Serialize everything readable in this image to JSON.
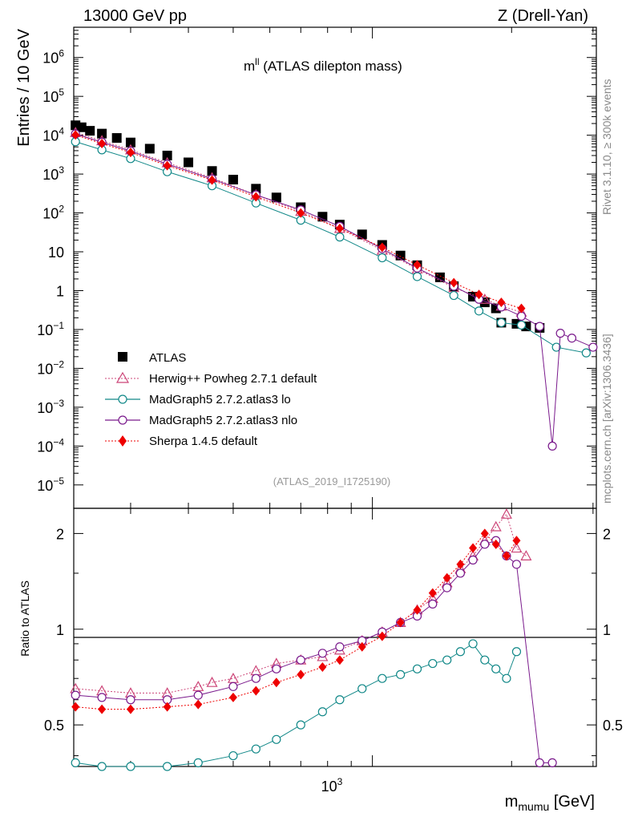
{
  "header": {
    "energy": "13000 GeV pp",
    "process": "Z (Drell-Yan)",
    "observable_main": "m",
    "observable_sup": "ll",
    "observable_desc": " (ATLAS dilepton mass)",
    "analysis": "(ATLAS_2019_I1725190)",
    "rivet": "Rivet 3.1.10, ≥ 300k events",
    "mcplots": "mcplots.cern.ch [arXiv:1306.3436]"
  },
  "axes": {
    "ylabel_main": "Entries / 10 GeV",
    "ylabel_ratio": "Ratio to ATLAS",
    "xlabel_main": "m",
    "xlabel_sub": "mumu",
    "xlabel_unit": " [GeV]",
    "x_tick": "10",
    "x_tick_exp": "3",
    "ratio_ticks": [
      "0.5",
      "1",
      "2"
    ],
    "main_ticks": [
      {
        "base": "10",
        "exp": "6"
      },
      {
        "base": "10",
        "exp": "5"
      },
      {
        "base": "10",
        "exp": "4"
      },
      {
        "base": "10",
        "exp": "3"
      },
      {
        "base": "10",
        "exp": "2"
      },
      {
        "base": "10",
        "exp": ""
      },
      {
        "base": "1",
        "exp": ""
      },
      {
        "base": "10",
        "exp": "−1"
      },
      {
        "base": "10",
        "exp": "−2"
      },
      {
        "base": "10",
        "exp": "−3"
      },
      {
        "base": "10",
        "exp": "−4"
      },
      {
        "base": "10",
        "exp": "−5"
      }
    ]
  },
  "legend": {
    "atlas": "ATLAS",
    "herwig": "Herwig++ Powheg 2.7.1 default",
    "mg_lo": "MadGraph5 2.7.2.atlas3 lo",
    "mg_nlo": "MadGraph5 2.7.2.atlas3 nlo",
    "sherpa": "Sherpa 1.4.5 default"
  },
  "colors": {
    "atlas": "#000000",
    "herwig": "#cc4477",
    "mg_lo": "#118888",
    "mg_nlo": "#7a1a8c",
    "sherpa": "#ee0000"
  },
  "chart_data": {
    "type": "scatter",
    "x_scale": "log",
    "x_range": [
      226,
      3050
    ],
    "y_range_main": [
      2.5e-06,
      6000000.0
    ],
    "y_scale_main": "log",
    "y_range_ratio": [
      0.37,
      2.4
    ],
    "y_scale_ratio": "log",
    "series": [
      {
        "name": "ATLAS",
        "points": [
          [
            228,
            18000
          ],
          [
            235,
            16000
          ],
          [
            245,
            13000
          ],
          [
            260,
            11000
          ],
          [
            280,
            8500
          ],
          [
            300,
            6500
          ],
          [
            330,
            4500
          ],
          [
            360,
            3000
          ],
          [
            400,
            2000
          ],
          [
            450,
            1200
          ],
          [
            500,
            720
          ],
          [
            560,
            420
          ],
          [
            620,
            250
          ],
          [
            700,
            140
          ],
          [
            780,
            80
          ],
          [
            850,
            50
          ],
          [
            950,
            28
          ],
          [
            1050,
            15
          ],
          [
            1150,
            8
          ],
          [
            1250,
            4.5
          ],
          [
            1400,
            2.2
          ],
          [
            1500,
            1.3
          ],
          [
            1650,
            0.7
          ],
          [
            1750,
            0.5
          ],
          [
            1850,
            0.35
          ],
          [
            1900,
            0.15
          ],
          [
            2050,
            0.14
          ],
          [
            2150,
            0.12
          ],
          [
            2300,
            0.11
          ]
        ]
      },
      {
        "name": "Herwig++ Powheg 2.7.1 default",
        "points": [
          [
            228,
            11700
          ],
          [
            260,
            7200
          ],
          [
            300,
            4200
          ],
          [
            360,
            1950
          ],
          [
            450,
            800
          ],
          [
            560,
            290
          ],
          [
            700,
            110
          ],
          [
            850,
            40
          ],
          [
            1050,
            11
          ],
          [
            1250,
            3.6
          ],
          [
            1500,
            1.2
          ],
          [
            1750,
            0.6
          ],
          [
            1900,
            0.4
          ],
          [
            2100,
            0.28
          ]
        ]
      },
      {
        "name": "MadGraph5 2.7.2.atlas3 lo",
        "points": [
          [
            228,
            6800
          ],
          [
            260,
            4200
          ],
          [
            300,
            2500
          ],
          [
            360,
            1150
          ],
          [
            450,
            500
          ],
          [
            560,
            180
          ],
          [
            700,
            65
          ],
          [
            850,
            24
          ],
          [
            1050,
            7
          ],
          [
            1250,
            2.3
          ],
          [
            1500,
            0.75
          ],
          [
            1700,
            0.3
          ],
          [
            1900,
            0.15
          ],
          [
            2100,
            0.13
          ],
          [
            2500,
            0.035
          ],
          [
            2900,
            0.025
          ]
        ]
      },
      {
        "name": "MadGraph5 2.7.2.atlas3 nlo",
        "points": [
          [
            228,
            10800
          ],
          [
            260,
            6600
          ],
          [
            300,
            3900
          ],
          [
            360,
            1800
          ],
          [
            450,
            750
          ],
          [
            560,
            290
          ],
          [
            700,
            120
          ],
          [
            850,
            45
          ],
          [
            1050,
            12
          ],
          [
            1250,
            3.8
          ],
          [
            1500,
            1.3
          ],
          [
            1700,
            0.6
          ],
          [
            1900,
            0.38
          ],
          [
            2100,
            0.22
          ],
          [
            2300,
            0.12
          ],
          [
            2450,
            0.0001
          ],
          [
            2550,
            0.08
          ],
          [
            2700,
            0.06
          ],
          [
            3000,
            0.035
          ]
        ]
      },
      {
        "name": "Sherpa 1.4.5 default",
        "points": [
          [
            228,
            10200
          ],
          [
            260,
            6100
          ],
          [
            300,
            3600
          ],
          [
            360,
            1650
          ],
          [
            450,
            700
          ],
          [
            560,
            260
          ],
          [
            700,
            100
          ],
          [
            850,
            40
          ],
          [
            1050,
            13
          ],
          [
            1250,
            4.6
          ],
          [
            1500,
            1.6
          ],
          [
            1700,
            0.8
          ],
          [
            1900,
            0.5
          ],
          [
            2100,
            0.35
          ]
        ]
      }
    ],
    "ratio_series": [
      {
        "name": "Herwig++ Powheg 2.7.1 default",
        "points": [
          [
            228,
            0.65
          ],
          [
            260,
            0.64
          ],
          [
            300,
            0.63
          ],
          [
            360,
            0.63
          ],
          [
            420,
            0.66
          ],
          [
            450,
            0.68
          ],
          [
            500,
            0.7
          ],
          [
            560,
            0.74
          ],
          [
            620,
            0.78
          ],
          [
            700,
            0.8
          ],
          [
            780,
            0.82
          ],
          [
            850,
            0.86
          ],
          [
            950,
            0.92
          ],
          [
            1050,
            0.98
          ],
          [
            1150,
            1.05
          ],
          [
            1250,
            1.15
          ],
          [
            1350,
            1.25
          ],
          [
            1450,
            1.4
          ],
          [
            1550,
            1.55
          ],
          [
            1650,
            1.7
          ],
          [
            1750,
            1.9
          ],
          [
            1850,
            2.1
          ],
          [
            1950,
            2.3
          ],
          [
            2050,
            1.8
          ],
          [
            2150,
            1.7
          ]
        ]
      },
      {
        "name": "MadGraph5 2.7.2.atlas3 lo",
        "points": [
          [
            228,
            0.38
          ],
          [
            260,
            0.37
          ],
          [
            300,
            0.37
          ],
          [
            360,
            0.37
          ],
          [
            420,
            0.38
          ],
          [
            500,
            0.4
          ],
          [
            560,
            0.42
          ],
          [
            620,
            0.45
          ],
          [
            700,
            0.5
          ],
          [
            780,
            0.55
          ],
          [
            850,
            0.6
          ],
          [
            950,
            0.65
          ],
          [
            1050,
            0.7
          ],
          [
            1150,
            0.72
          ],
          [
            1250,
            0.75
          ],
          [
            1350,
            0.78
          ],
          [
            1450,
            0.8
          ],
          [
            1550,
            0.85
          ],
          [
            1650,
            0.9
          ],
          [
            1750,
            0.8
          ],
          [
            1850,
            0.75
          ],
          [
            1950,
            0.7
          ],
          [
            2050,
            0.85
          ]
        ]
      },
      {
        "name": "MadGraph5 2.7.2.atlas3 nlo",
        "points": [
          [
            228,
            0.62
          ],
          [
            260,
            0.61
          ],
          [
            300,
            0.6
          ],
          [
            360,
            0.6
          ],
          [
            420,
            0.62
          ],
          [
            500,
            0.66
          ],
          [
            560,
            0.7
          ],
          [
            620,
            0.75
          ],
          [
            700,
            0.8
          ],
          [
            780,
            0.84
          ],
          [
            850,
            0.88
          ],
          [
            950,
            0.92
          ],
          [
            1050,
            0.98
          ],
          [
            1150,
            1.05
          ],
          [
            1250,
            1.1
          ],
          [
            1350,
            1.2
          ],
          [
            1450,
            1.35
          ],
          [
            1550,
            1.5
          ],
          [
            1650,
            1.65
          ],
          [
            1750,
            1.85
          ],
          [
            1850,
            1.9
          ],
          [
            1950,
            1.7
          ],
          [
            2050,
            1.6
          ],
          [
            2300,
            0.38
          ],
          [
            2450,
            0.38
          ]
        ]
      },
      {
        "name": "Sherpa 1.4.5 default",
        "points": [
          [
            228,
            0.57
          ],
          [
            260,
            0.56
          ],
          [
            300,
            0.56
          ],
          [
            360,
            0.57
          ],
          [
            420,
            0.58
          ],
          [
            500,
            0.61
          ],
          [
            560,
            0.64
          ],
          [
            620,
            0.68
          ],
          [
            700,
            0.72
          ],
          [
            780,
            0.76
          ],
          [
            850,
            0.8
          ],
          [
            950,
            0.88
          ],
          [
            1050,
            0.95
          ],
          [
            1150,
            1.05
          ],
          [
            1250,
            1.15
          ],
          [
            1350,
            1.3
          ],
          [
            1450,
            1.45
          ],
          [
            1550,
            1.6
          ],
          [
            1650,
            1.8
          ],
          [
            1750,
            2.0
          ],
          [
            1850,
            1.85
          ],
          [
            1950,
            1.7
          ],
          [
            2050,
            1.9
          ]
        ]
      }
    ]
  }
}
